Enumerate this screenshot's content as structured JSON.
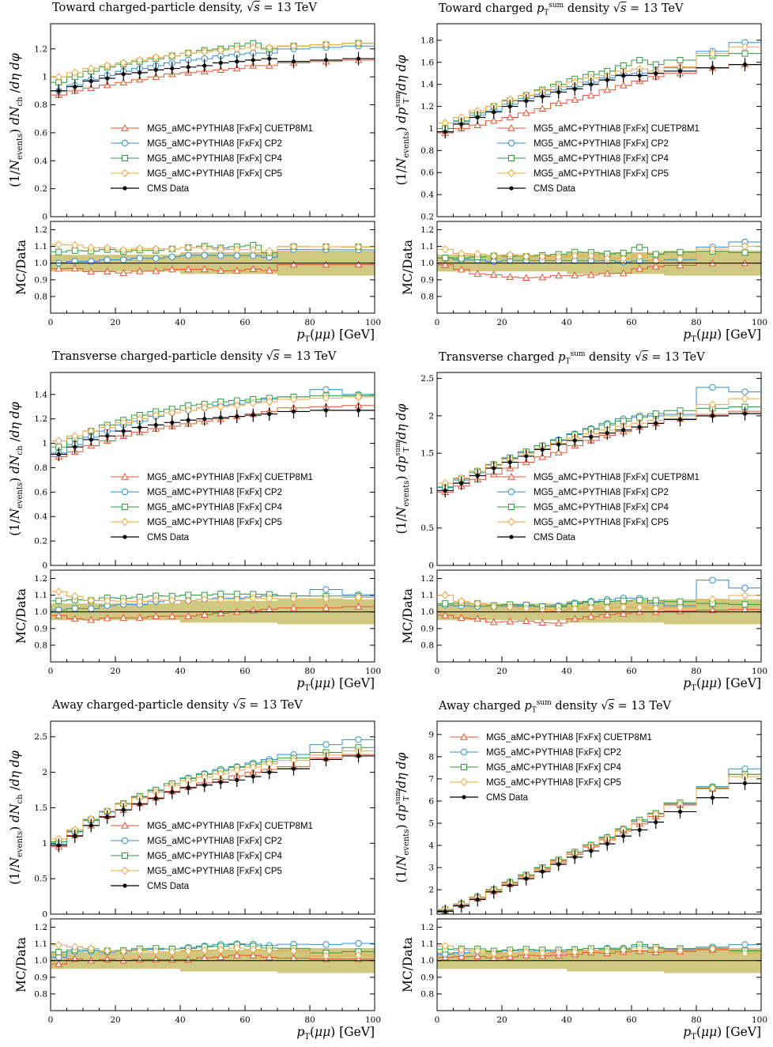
{
  "legend_labels": [
    "MG5_aMC+PYTHIA8 [FxFx] CUETP8M1",
    "MG5_aMC+PYTHIA8 [FxFx] CP2",
    "MG5_aMC+PYTHIA8 [FxFx] CP4",
    "MG5_aMC+PYTHIA8 [FxFx] CP5",
    "CMS Data"
  ],
  "series_colors": {
    "CUETP8M1": "#e8542f",
    "CP2": "#2d8fd5",
    "CP4": "#2f9a3c",
    "CP5": "#f2a33a",
    "data": "#000000",
    "band": "#c8bd6a"
  },
  "ratio_label": "MC/Data",
  "xlabel": "p_T(μμ) [GeV]",
  "panels": [
    {
      "title_text": "Toward charged-particle density, ",
      "title_math": "√s = 13 TeV",
      "ylabel": "(1/N_events) dN_ch /dη dφ",
      "ylim": [
        0,
        1.38
      ],
      "yticks": [
        "0",
        "0.2",
        "0.4",
        "0.6",
        "0.8",
        "1",
        "1.2"
      ],
      "legend_pos": "center",
      "chart_data": {
        "type": "line",
        "x": [
          2.5,
          7.5,
          12.5,
          17.5,
          22.5,
          27.5,
          32.5,
          37.5,
          42.5,
          47.5,
          52.5,
          57.5,
          62.5,
          67.5,
          75,
          85,
          95
        ],
        "series": [
          {
            "name": "CMS Data",
            "values": [
              0.9,
              0.93,
              0.97,
              0.99,
              1.02,
              1.03,
              1.05,
              1.06,
              1.07,
              1.08,
              1.1,
              1.11,
              1.12,
              1.13,
              1.11,
              1.12,
              1.13
            ]
          },
          {
            "name": "CUETP8M1",
            "values": [
              0.87,
              0.9,
              0.92,
              0.94,
              0.96,
              0.98,
              1.0,
              1.02,
              1.03,
              1.04,
              1.05,
              1.06,
              1.08,
              1.08,
              1.1,
              1.11,
              1.12
            ]
          },
          {
            "name": "CP2",
            "values": [
              0.9,
              0.94,
              0.98,
              1.01,
              1.04,
              1.06,
              1.08,
              1.1,
              1.12,
              1.13,
              1.15,
              1.16,
              1.17,
              1.17,
              1.2,
              1.21,
              1.22
            ]
          },
          {
            "name": "CP4",
            "values": [
              0.96,
              1.0,
              1.04,
              1.07,
              1.09,
              1.11,
              1.13,
              1.15,
              1.17,
              1.19,
              1.2,
              1.22,
              1.24,
              1.2,
              1.22,
              1.23,
              1.24
            ]
          },
          {
            "name": "CP5",
            "values": [
              1.0,
              1.03,
              1.06,
              1.08,
              1.1,
              1.12,
              1.14,
              1.15,
              1.17,
              1.18,
              1.19,
              1.2,
              1.21,
              1.21,
              1.22,
              1.23,
              1.24
            ]
          }
        ]
      }
    },
    {
      "title_text": "Toward charged ",
      "title_math": "p_T^sum density √s = 13 TeV",
      "ylabel": "(1/N_events) dp_T^sum /dη dφ",
      "ylim": [
        0.2,
        1.95
      ],
      "yticks": [
        "0.2",
        "0.4",
        "0.6",
        "0.8",
        "1",
        "1.2",
        "1.4",
        "1.6",
        "1.8"
      ],
      "legend_pos": "center",
      "chart_data": {
        "type": "line",
        "x": [
          2.5,
          7.5,
          12.5,
          17.5,
          22.5,
          27.5,
          32.5,
          37.5,
          42.5,
          47.5,
          52.5,
          57.5,
          62.5,
          67.5,
          75,
          85,
          95
        ],
        "series": [
          {
            "name": "CMS Data",
            "values": [
              0.97,
              1.04,
              1.1,
              1.15,
              1.2,
              1.25,
              1.29,
              1.33,
              1.36,
              1.4,
              1.44,
              1.48,
              1.48,
              1.5,
              1.52,
              1.55,
              1.58
            ]
          },
          {
            "name": "CUETP8M1",
            "values": [
              0.96,
              1.0,
              1.03,
              1.07,
              1.1,
              1.14,
              1.18,
              1.23,
              1.26,
              1.3,
              1.35,
              1.39,
              1.43,
              1.47,
              1.5,
              1.55,
              1.58
            ]
          },
          {
            "name": "CP2",
            "values": [
              1.0,
              1.06,
              1.12,
              1.16,
              1.22,
              1.27,
              1.31,
              1.35,
              1.38,
              1.42,
              1.46,
              1.49,
              1.5,
              1.52,
              1.55,
              1.7,
              1.78
            ]
          },
          {
            "name": "CP4",
            "values": [
              1.0,
              1.07,
              1.14,
              1.2,
              1.25,
              1.3,
              1.35,
              1.4,
              1.45,
              1.49,
              1.52,
              1.57,
              1.62,
              1.58,
              1.62,
              1.66,
              1.68
            ]
          },
          {
            "name": "CP5",
            "values": [
              1.05,
              1.1,
              1.16,
              1.2,
              1.26,
              1.3,
              1.34,
              1.38,
              1.42,
              1.46,
              1.48,
              1.52,
              1.54,
              1.52,
              1.56,
              1.68,
              1.74
            ]
          }
        ]
      }
    },
    {
      "title_text": "Transverse charged-particle density ",
      "title_math": "√s = 13 TeV",
      "ylabel": "(1/N_events) dN_ch /dη dφ",
      "ylim": [
        0,
        1.58
      ],
      "yticks": [
        "0",
        "0.2",
        "0.4",
        "0.6",
        "0.8",
        "1",
        "1.2",
        "1.4"
      ],
      "legend_pos": "center",
      "chart_data": {
        "type": "line",
        "x": [
          2.5,
          7.5,
          12.5,
          17.5,
          22.5,
          27.5,
          32.5,
          37.5,
          42.5,
          47.5,
          52.5,
          57.5,
          62.5,
          67.5,
          75,
          85,
          95
        ],
        "series": [
          {
            "name": "CMS Data",
            "values": [
              0.91,
              0.97,
              1.03,
              1.06,
              1.1,
              1.13,
              1.15,
              1.17,
              1.19,
              1.2,
              1.21,
              1.22,
              1.23,
              1.24,
              1.26,
              1.27,
              1.27
            ]
          },
          {
            "name": "CUETP8M1",
            "values": [
              0.89,
              0.93,
              0.98,
              1.02,
              1.06,
              1.09,
              1.12,
              1.14,
              1.16,
              1.18,
              1.2,
              1.22,
              1.24,
              1.26,
              1.29,
              1.3,
              1.31
            ]
          },
          {
            "name": "CP2",
            "values": [
              0.92,
              0.99,
              1.05,
              1.1,
              1.15,
              1.18,
              1.22,
              1.25,
              1.27,
              1.29,
              1.31,
              1.32,
              1.34,
              1.36,
              1.38,
              1.44,
              1.4
            ]
          },
          {
            "name": "CP4",
            "values": [
              0.97,
              1.04,
              1.1,
              1.15,
              1.19,
              1.23,
              1.26,
              1.28,
              1.31,
              1.32,
              1.34,
              1.35,
              1.36,
              1.37,
              1.38,
              1.39,
              1.39
            ]
          },
          {
            "name": "CP5",
            "values": [
              1.02,
              1.06,
              1.1,
              1.13,
              1.17,
              1.2,
              1.23,
              1.25,
              1.27,
              1.29,
              1.3,
              1.31,
              1.33,
              1.34,
              1.36,
              1.37,
              1.38
            ]
          }
        ]
      }
    },
    {
      "title_text": "Transverse charged ",
      "title_math": "p_T^sum density √s = 13 TeV",
      "ylabel": "(1/N_events) dp_T^sum /dη dφ",
      "ylim": [
        0,
        2.58
      ],
      "yticks": [
        "0",
        "0.5",
        "1",
        "1.5",
        "2",
        "2.5"
      ],
      "legend_pos": "center",
      "chart_data": {
        "type": "line",
        "x": [
          2.5,
          7.5,
          12.5,
          17.5,
          22.5,
          27.5,
          32.5,
          37.5,
          42.5,
          47.5,
          52.5,
          57.5,
          62.5,
          67.5,
          75,
          85,
          95
        ],
        "series": [
          {
            "name": "CMS Data",
            "values": [
              1.0,
              1.1,
              1.2,
              1.3,
              1.38,
              1.46,
              1.55,
              1.62,
              1.67,
              1.72,
              1.77,
              1.81,
              1.85,
              1.9,
              1.95,
              2.0,
              2.03
            ]
          },
          {
            "name": "CUETP8M1",
            "values": [
              0.98,
              1.06,
              1.15,
              1.22,
              1.3,
              1.38,
              1.45,
              1.51,
              1.6,
              1.67,
              1.74,
              1.79,
              1.85,
              1.9,
              1.96,
              2.02,
              2.06
            ]
          },
          {
            "name": "CP2",
            "values": [
              1.04,
              1.14,
              1.24,
              1.34,
              1.43,
              1.51,
              1.6,
              1.68,
              1.76,
              1.83,
              1.9,
              1.96,
              2.0,
              2.0,
              2.02,
              2.38,
              2.32
            ]
          },
          {
            "name": "CP4",
            "values": [
              1.05,
              1.16,
              1.26,
              1.35,
              1.44,
              1.52,
              1.6,
              1.67,
              1.75,
              1.82,
              1.88,
              1.93,
              1.98,
              2.03,
              2.07,
              2.1,
              2.12
            ]
          },
          {
            "name": "CP5",
            "values": [
              1.1,
              1.17,
              1.26,
              1.34,
              1.42,
              1.49,
              1.56,
              1.63,
              1.7,
              1.76,
              1.81,
              1.86,
              1.9,
              1.94,
              2.0,
              2.15,
              2.23
            ]
          }
        ]
      }
    },
    {
      "title_text": "Away charged-particle density ",
      "title_math": "√s = 13 TeV",
      "ylabel": "(1/N_events) dN_ch /dη dφ",
      "ylim": [
        0,
        2.72
      ],
      "yticks": [
        "0",
        "0.5",
        "1",
        "1.5",
        "2",
        "2.5"
      ],
      "legend_pos": "center",
      "chart_data": {
        "type": "line",
        "x": [
          2.5,
          7.5,
          12.5,
          17.5,
          22.5,
          27.5,
          32.5,
          37.5,
          42.5,
          47.5,
          52.5,
          57.5,
          62.5,
          67.5,
          75,
          85,
          95
        ],
        "series": [
          {
            "name": "CMS Data",
            "values": [
              0.97,
              1.1,
              1.25,
              1.37,
              1.47,
              1.55,
              1.63,
              1.72,
              1.78,
              1.82,
              1.86,
              1.89,
              1.94,
              2.0,
              2.05,
              2.18,
              2.23
            ]
          },
          {
            "name": "CUETP8M1",
            "values": [
              0.95,
              1.11,
              1.25,
              1.38,
              1.47,
              1.56,
              1.64,
              1.73,
              1.79,
              1.85,
              1.9,
              1.95,
              2.0,
              2.04,
              2.08,
              2.2,
              2.25
            ]
          },
          {
            "name": "CP2",
            "values": [
              0.99,
              1.16,
              1.32,
              1.44,
              1.55,
              1.65,
              1.74,
              1.84,
              1.92,
              1.98,
              2.04,
              2.08,
              2.13,
              2.18,
              2.25,
              2.39,
              2.46
            ]
          },
          {
            "name": "CP4",
            "values": [
              1.02,
              1.17,
              1.33,
              1.45,
              1.56,
              1.66,
              1.75,
              1.84,
              1.91,
              1.97,
              2.02,
              2.07,
              2.11,
              2.15,
              2.2,
              2.28,
              2.35
            ]
          },
          {
            "name": "CP5",
            "values": [
              1.06,
              1.19,
              1.34,
              1.45,
              1.55,
              1.64,
              1.72,
              1.81,
              1.88,
              1.93,
              1.98,
              2.03,
              2.07,
              2.12,
              2.17,
              2.24,
              2.3
            ]
          }
        ]
      }
    },
    {
      "title_text": "Away charged ",
      "title_math": "p_T^sum density √s = 13 TeV",
      "ylabel": "(1/N_events) dp_T^sum /dη dφ",
      "ylim": [
        0.9,
        9.6
      ],
      "yticks": [
        "1",
        "2",
        "3",
        "4",
        "5",
        "6",
        "7",
        "8",
        "9"
      ],
      "legend_pos": "top-left",
      "chart_data": {
        "type": "line",
        "x": [
          2.5,
          7.5,
          12.5,
          17.5,
          22.5,
          27.5,
          32.5,
          37.5,
          42.5,
          47.5,
          52.5,
          57.5,
          62.5,
          67.5,
          75,
          85,
          95
        ],
        "series": [
          {
            "name": "CMS Data",
            "values": [
              1.03,
              1.27,
              1.56,
              1.9,
              2.2,
              2.5,
              2.82,
              3.15,
              3.47,
              3.75,
              4.07,
              4.42,
              4.7,
              5.05,
              5.52,
              6.15,
              6.8
            ]
          },
          {
            "name": "CUETP8M1",
            "values": [
              1.05,
              1.3,
              1.6,
              1.93,
              2.25,
              2.58,
              2.9,
              3.25,
              3.6,
              3.93,
              4.25,
              4.65,
              4.97,
              5.3,
              5.82,
              6.55,
              7.2
            ]
          },
          {
            "name": "CP2",
            "values": [
              1.07,
              1.33,
              1.65,
              2.0,
              2.33,
              2.65,
              2.98,
              3.32,
              3.7,
              4.02,
              4.37,
              4.75,
              5.1,
              5.42,
              5.88,
              6.65,
              7.45
            ]
          },
          {
            "name": "CP4",
            "values": [
              1.1,
              1.36,
              1.67,
              2.01,
              2.34,
              2.67,
              3.0,
              3.35,
              3.7,
              4.02,
              4.35,
              4.72,
              5.15,
              5.45,
              5.92,
              6.6,
              7.2
            ]
          },
          {
            "name": "CP5",
            "values": [
              1.12,
              1.35,
              1.65,
              1.98,
              2.3,
              2.63,
              2.95,
              3.3,
              3.65,
              3.97,
              4.3,
              4.7,
              5.05,
              5.4,
              5.85,
              6.58,
              7.1
            ]
          }
        ]
      }
    }
  ]
}
